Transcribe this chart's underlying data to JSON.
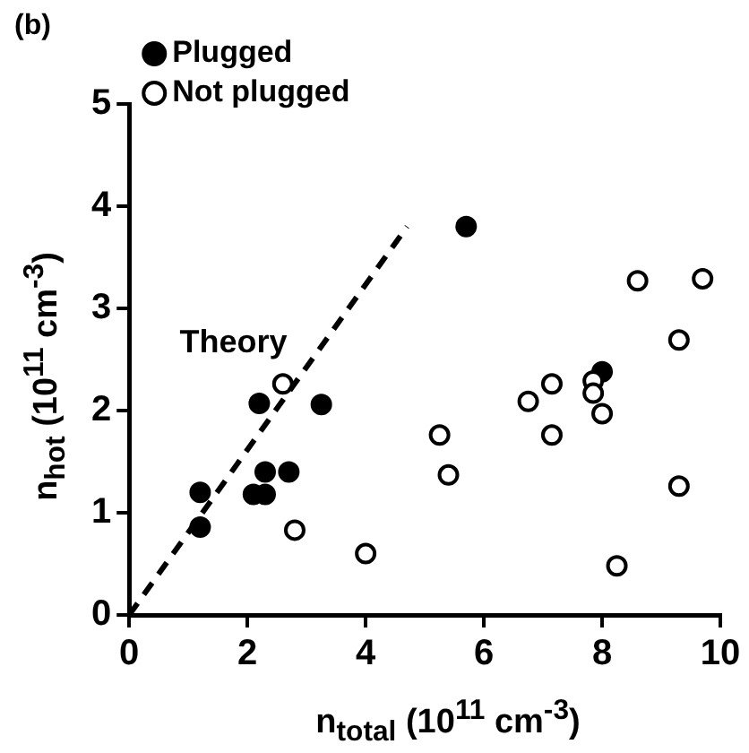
{
  "chart_data": {
    "type": "scatter",
    "xlabel": "n$_{total}$ (10$^{11}$ cm$^{-3}$)",
    "ylabel": "n$_{hot}$ (10$^{11}$ cm$^{-3}$)",
    "annotations": [
      "(b)"
    ],
    "xlim": [
      0,
      10
    ],
    "ylim": [
      0,
      5
    ],
    "xticks": [
      0,
      2,
      4,
      6,
      8,
      10
    ],
    "yticks": [
      0,
      1,
      2,
      3,
      4,
      5
    ],
    "grid": false,
    "legend": "top left",
    "marker": "circle",
    "series": [
      {
        "name": "Plugged",
        "color": "#000000",
        "x": [
          1.2,
          1.2,
          2.2,
          2.1,
          2.3,
          2.3,
          2.7,
          3.25,
          5.7,
          8.0
        ],
        "values": [
          1.2,
          0.86,
          2.07,
          1.18,
          1.18,
          1.4,
          1.4,
          2.06,
          3.8,
          2.38
        ]
      },
      {
        "name": "Not plugged",
        "color": "#ffffff",
        "x": [
          2.6,
          2.8,
          4.0,
          5.25,
          5.4,
          6.75,
          7.15,
          7.15,
          7.85,
          7.85,
          8.0,
          8.6,
          9.7,
          9.3,
          9.3,
          8.25
        ],
        "values": [
          2.26,
          0.83,
          0.6,
          1.76,
          1.37,
          2.09,
          2.26,
          1.76,
          2.29,
          2.17,
          1.97,
          3.27,
          3.29,
          2.69,
          1.26,
          0.48
        ]
      },
      {
        "name": "Theory",
        "type": "line",
        "line_style": "dashed",
        "marker": "none",
        "color": "#000000",
        "x": [
          0,
          4.7
        ],
        "values": [
          0,
          3.8
        ]
      }
    ]
  }
}
